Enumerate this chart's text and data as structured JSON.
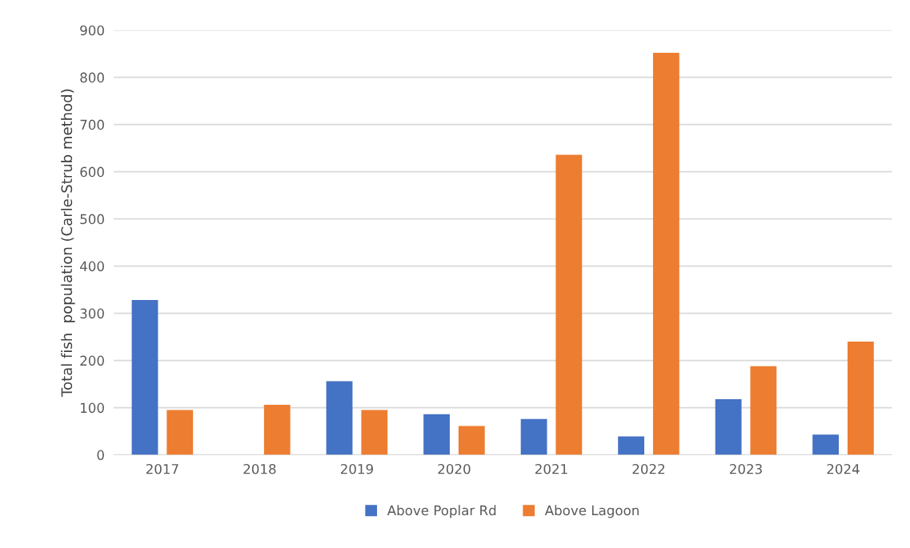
{
  "chart_data": {
    "type": "bar",
    "ylabel": "Total fish  population (Carle-Strub method)",
    "categories": [
      "2017",
      "2018",
      "2019",
      "2020",
      "2021",
      "2022",
      "2023",
      "2024"
    ],
    "series": [
      {
        "name": "Above Poplar Rd",
        "color": "#4472c4",
        "values": [
          328,
          null,
          156,
          86,
          76,
          39,
          118,
          43
        ]
      },
      {
        "name": "Above Lagoon",
        "color": "#ed7d31",
        "values": [
          95,
          106,
          95,
          61,
          636,
          852,
          188,
          240
        ]
      }
    ],
    "ylim": [
      0,
      900
    ],
    "yticks": [
      0,
      100,
      200,
      300,
      400,
      500,
      600,
      700,
      800,
      900
    ],
    "grid": "y",
    "legend": "bottom"
  }
}
